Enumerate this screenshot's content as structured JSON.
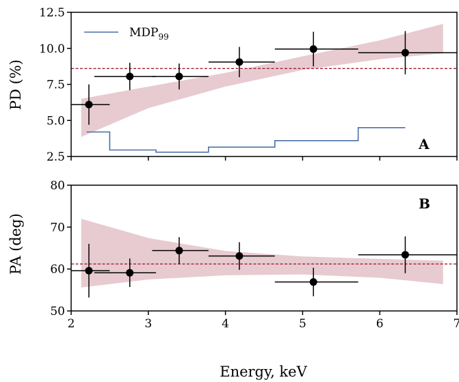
{
  "chart_data": [
    {
      "type": "scatter",
      "panel_label": "A",
      "ylabel": "PD (%)",
      "xlim": [
        2,
        7
      ],
      "ylim": [
        2.5,
        12.5
      ],
      "yticks": [
        "2.5",
        "5.0",
        "7.5",
        "10.0",
        "12.5"
      ],
      "reference_line": 8.6,
      "series": [
        {
          "kind": "points",
          "points": [
            {
              "x": 2.23,
              "x_lo": 2.0,
              "x_hi": 2.5,
              "y": 6.1,
              "y_err": 1.4
            },
            {
              "x": 2.76,
              "x_lo": 2.3,
              "x_hi": 3.1,
              "y": 8.05,
              "y_err": 0.95
            },
            {
              "x": 3.4,
              "x_lo": 3.05,
              "x_hi": 3.78,
              "y": 8.05,
              "y_err": 0.9
            },
            {
              "x": 4.18,
              "x_lo": 3.78,
              "x_hi": 4.64,
              "y": 9.05,
              "y_err": 1.05
            },
            {
              "x": 5.14,
              "x_lo": 4.64,
              "x_hi": 5.72,
              "y": 9.95,
              "y_err": 1.2
            },
            {
              "x": 6.33,
              "x_lo": 5.72,
              "x_hi": 7.0,
              "y": 9.7,
              "y_err": 1.5
            }
          ]
        },
        {
          "name": "MDP99",
          "kind": "step",
          "color": "#4a6fa5",
          "steps": [
            {
              "x0": 2.2,
              "x1": 2.5,
              "y": 4.2
            },
            {
              "x0": 2.5,
              "x1": 3.1,
              "y": 2.95
            },
            {
              "x0": 3.1,
              "x1": 3.78,
              "y": 2.8
            },
            {
              "x0": 3.78,
              "x1": 4.64,
              "y": 3.15
            },
            {
              "x0": 4.64,
              "x1": 5.72,
              "y": 3.6
            },
            {
              "x0": 5.72,
              "x1": 6.33,
              "y": 4.5
            }
          ]
        },
        {
          "kind": "band",
          "color": "#d4a0ab",
          "x": [
            2.13,
            3.0,
            4.0,
            5.0,
            6.0,
            6.82
          ],
          "lower": [
            3.85,
            5.85,
            7.35,
            8.5,
            9.25,
            9.65
          ],
          "upper": [
            6.5,
            7.35,
            8.3,
            9.45,
            10.55,
            11.7
          ]
        }
      ]
    },
    {
      "type": "scatter",
      "panel_label": "B",
      "xlabel": "Energy, keV",
      "ylabel": "PA (deg)",
      "xlim": [
        2,
        7
      ],
      "ylim": [
        50,
        80
      ],
      "yticks": [
        "50",
        "60",
        "70",
        "80"
      ],
      "xticks": [
        "2",
        "3",
        "4",
        "5",
        "6",
        "7"
      ],
      "reference_line": 61.2,
      "series": [
        {
          "kind": "points",
          "points": [
            {
              "x": 2.23,
              "x_lo": 2.0,
              "x_hi": 2.5,
              "y": 59.6,
              "y_err": 6.4
            },
            {
              "x": 2.76,
              "x_lo": 2.3,
              "x_hi": 3.1,
              "y": 59.1,
              "y_err": 3.4
            },
            {
              "x": 3.4,
              "x_lo": 3.05,
              "x_hi": 3.78,
              "y": 64.4,
              "y_err": 3.2
            },
            {
              "x": 4.18,
              "x_lo": 3.78,
              "x_hi": 4.64,
              "y": 63.1,
              "y_err": 3.3
            },
            {
              "x": 5.14,
              "x_lo": 4.64,
              "x_hi": 5.72,
              "y": 56.9,
              "y_err": 3.4
            },
            {
              "x": 6.33,
              "x_lo": 5.72,
              "x_hi": 7.0,
              "y": 63.4,
              "y_err": 4.4
            }
          ]
        },
        {
          "kind": "band",
          "color": "#d4a0ab",
          "x": [
            2.13,
            3.0,
            4.0,
            5.0,
            6.0,
            6.82
          ],
          "lower": [
            55.6,
            57.5,
            58.5,
            58.7,
            57.9,
            56.4
          ],
          "upper": [
            72.0,
            67.4,
            64.3,
            63.0,
            62.4,
            62.0
          ]
        }
      ]
    }
  ],
  "legend": {
    "text": "MDP",
    "sub": "99"
  },
  "colors": {
    "reference_line": "#a01c30",
    "points": "#000000"
  }
}
